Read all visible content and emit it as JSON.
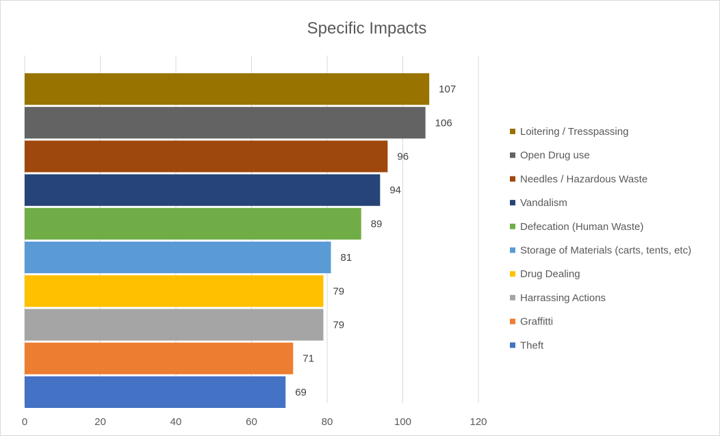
{
  "chart_data": {
    "type": "bar",
    "orientation": "horizontal",
    "title": "Specific Impacts",
    "xlabel": "",
    "ylabel": "",
    "xlim": [
      0,
      120
    ],
    "x_ticks": [
      0,
      20,
      40,
      60,
      80,
      100,
      120
    ],
    "grid": true,
    "legend_position": "right",
    "series": [
      {
        "name": "Loitering / Tresspassing",
        "value": 107,
        "color": "#997300"
      },
      {
        "name": "Open Drug use",
        "value": 106,
        "color": "#636363"
      },
      {
        "name": "Needles / Hazardous Waste",
        "value": 96,
        "color": "#9E480E"
      },
      {
        "name": "Vandalism",
        "value": 94,
        "color": "#264478"
      },
      {
        "name": "Defecation (Human Waste)",
        "value": 89,
        "color": "#70AD47"
      },
      {
        "name": "Storage of Materials (carts, tents, etc)",
        "value": 81,
        "color": "#5B9BD5"
      },
      {
        "name": "Drug Dealing",
        "value": 79,
        "color": "#FFC000"
      },
      {
        "name": "Harrassing Actions",
        "value": 79,
        "color": "#A5A5A5"
      },
      {
        "name": "Graffitti",
        "value": 71,
        "color": "#ED7D31"
      },
      {
        "name": "Theft",
        "value": 69,
        "color": "#4472C4"
      }
    ]
  }
}
